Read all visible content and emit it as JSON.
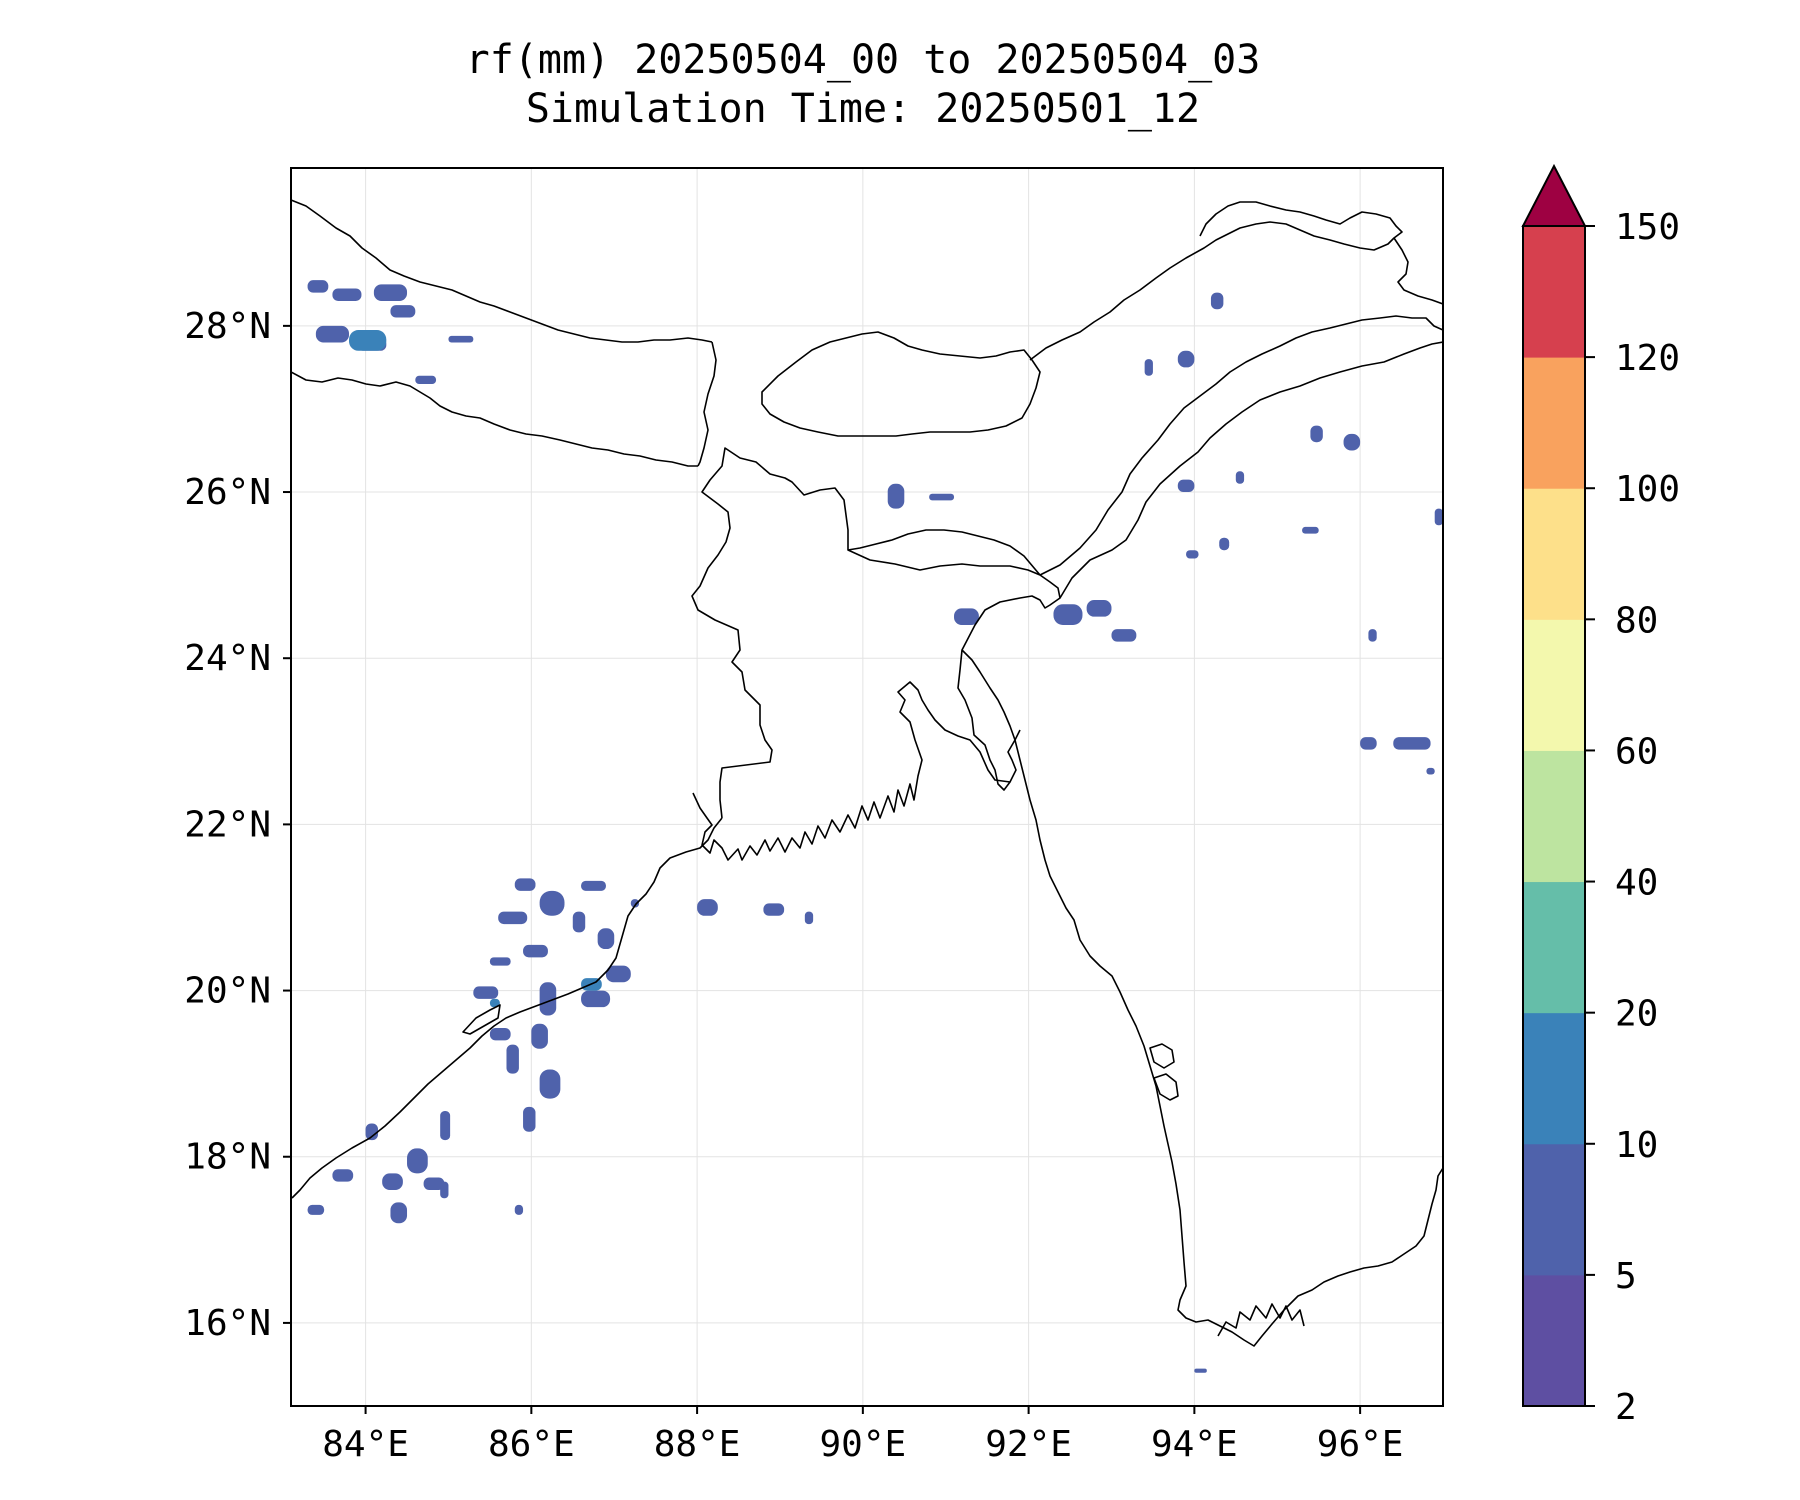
{
  "title": {
    "line1": "rf(mm) 20250504_00 to 20250504_03",
    "line2": "Simulation Time: 20250501_12"
  },
  "map": {
    "lon_range": [
      83.1,
      97
    ],
    "lat_range": [
      15,
      29.9
    ],
    "lon_ticks": [
      {
        "value": 84,
        "label": "84°E"
      },
      {
        "value": 86,
        "label": "86°E"
      },
      {
        "value": 88,
        "label": "88°E"
      },
      {
        "value": 90,
        "label": "90°E"
      },
      {
        "value": 92,
        "label": "92°E"
      },
      {
        "value": 94,
        "label": "94°E"
      },
      {
        "value": 96,
        "label": "96°E"
      }
    ],
    "lat_ticks": [
      {
        "value": 16,
        "label": "16°N"
      },
      {
        "value": 18,
        "label": "18°N"
      },
      {
        "value": 20,
        "label": "20°N"
      },
      {
        "value": 22,
        "label": "22°N"
      },
      {
        "value": 24,
        "label": "24°N"
      },
      {
        "value": 26,
        "label": "26°N"
      },
      {
        "value": 28,
        "label": "28°N"
      }
    ],
    "gridlines": true
  },
  "colorbar": {
    "levels": [
      "2",
      "5",
      "10",
      "20",
      "40",
      "60",
      "80",
      "100",
      "120",
      "150"
    ],
    "colors": [
      "#5e4fa2",
      "#4f62ab",
      "#3a82b9",
      "#65bea9",
      "#bde4a0",
      "#f3f8ad",
      "#fde08a",
      "#f9a25e",
      "#d6404e"
    ],
    "extend_color": "#9e0142",
    "extend": "max"
  },
  "rain_areas": [
    {
      "level": "5-10",
      "color": "#4f62ab",
      "cells": [
        [
          83.3,
          28.4,
          0.25,
          0.15
        ],
        [
          83.6,
          28.3,
          0.35,
          0.15
        ],
        [
          84.1,
          28.3,
          0.4,
          0.2
        ],
        [
          84.3,
          28.1,
          0.3,
          0.15
        ],
        [
          83.4,
          27.8,
          0.4,
          0.2
        ],
        [
          83.9,
          27.7,
          0.35,
          0.15
        ],
        [
          84.6,
          27.3,
          0.25,
          0.1
        ],
        [
          85.0,
          27.8,
          0.3,
          0.08
        ],
        [
          85.8,
          21.2,
          0.25,
          0.15
        ],
        [
          86.1,
          20.9,
          0.3,
          0.3
        ],
        [
          85.6,
          20.8,
          0.35,
          0.15
        ],
        [
          86.5,
          20.7,
          0.15,
          0.25
        ],
        [
          86.8,
          20.5,
          0.2,
          0.25
        ],
        [
          85.9,
          20.4,
          0.3,
          0.15
        ],
        [
          85.5,
          20.3,
          0.25,
          0.1
        ],
        [
          86.9,
          20.1,
          0.3,
          0.2
        ],
        [
          86.6,
          19.8,
          0.35,
          0.2
        ],
        [
          86.1,
          19.7,
          0.2,
          0.4
        ],
        [
          86.0,
          19.3,
          0.2,
          0.3
        ],
        [
          85.5,
          19.4,
          0.25,
          0.15
        ],
        [
          85.3,
          19.9,
          0.3,
          0.15
        ],
        [
          85.7,
          19.0,
          0.15,
          0.35
        ],
        [
          86.1,
          18.7,
          0.25,
          0.35
        ],
        [
          85.9,
          18.3,
          0.15,
          0.3
        ],
        [
          84.9,
          18.2,
          0.12,
          0.35
        ],
        [
          84.5,
          17.8,
          0.25,
          0.3
        ],
        [
          84.2,
          17.6,
          0.25,
          0.2
        ],
        [
          83.6,
          17.7,
          0.25,
          0.15
        ],
        [
          83.3,
          17.3,
          0.2,
          0.12
        ],
        [
          84.3,
          17.2,
          0.2,
          0.25
        ],
        [
          84.7,
          17.6,
          0.25,
          0.15
        ],
        [
          84.9,
          17.5,
          0.1,
          0.2
        ],
        [
          85.8,
          17.3,
          0.1,
          0.12
        ],
        [
          84.0,
          18.2,
          0.15,
          0.2
        ],
        [
          88.0,
          20.9,
          0.25,
          0.2
        ],
        [
          88.8,
          20.9,
          0.25,
          0.15
        ],
        [
          89.3,
          20.8,
          0.1,
          0.15
        ],
        [
          86.6,
          21.2,
          0.3,
          0.12
        ],
        [
          87.2,
          21.0,
          0.1,
          0.1
        ],
        [
          90.3,
          25.8,
          0.2,
          0.3
        ],
        [
          90.8,
          25.9,
          0.3,
          0.08
        ],
        [
          91.1,
          24.4,
          0.3,
          0.2
        ],
        [
          92.3,
          24.4,
          0.35,
          0.25
        ],
        [
          92.7,
          24.5,
          0.3,
          0.2
        ],
        [
          93.0,
          24.2,
          0.3,
          0.15
        ],
        [
          94.2,
          28.2,
          0.15,
          0.2
        ],
        [
          93.8,
          27.5,
          0.2,
          0.2
        ],
        [
          93.4,
          27.4,
          0.1,
          0.2
        ],
        [
          93.8,
          26.0,
          0.2,
          0.15
        ],
        [
          93.9,
          25.2,
          0.15,
          0.1
        ],
        [
          94.3,
          25.3,
          0.12,
          0.15
        ],
        [
          94.5,
          26.1,
          0.1,
          0.15
        ],
        [
          95.4,
          26.6,
          0.15,
          0.2
        ],
        [
          95.8,
          26.5,
          0.2,
          0.2
        ],
        [
          95.3,
          25.5,
          0.2,
          0.08
        ],
        [
          96.1,
          24.2,
          0.1,
          0.15
        ],
        [
          96.0,
          22.9,
          0.2,
          0.15
        ],
        [
          96.4,
          22.9,
          0.45,
          0.15
        ],
        [
          96.9,
          25.6,
          0.1,
          0.2
        ],
        [
          96.8,
          22.6,
          0.1,
          0.08
        ],
        [
          94.0,
          15.4,
          0.15,
          0.05
        ]
      ]
    },
    {
      "level": "10-20",
      "color": "#3a82b9",
      "cells": [
        [
          83.8,
          27.7,
          0.45,
          0.25
        ],
        [
          86.6,
          20.0,
          0.25,
          0.15
        ],
        [
          85.5,
          19.8,
          0.12,
          0.1
        ]
      ]
    }
  ]
}
